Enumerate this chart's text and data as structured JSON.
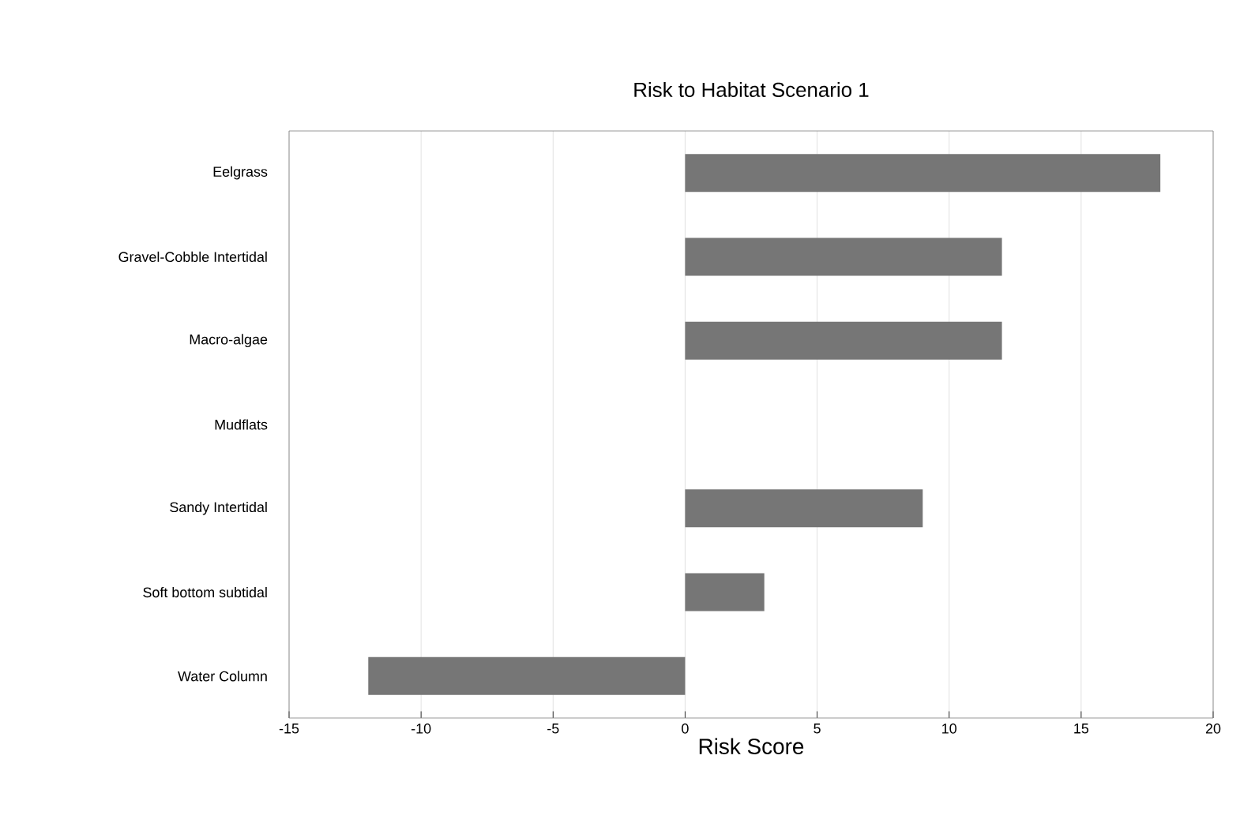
{
  "chart_data": {
    "type": "bar",
    "orientation": "horizontal",
    "title": "Risk to Habitat Scenario 1",
    "xlabel": "Risk Score",
    "categories": [
      "Eelgrass",
      "Gravel-Cobble Intertidal",
      "Macro-algae",
      "Mudflats",
      "Sandy Intertidal",
      "Soft bottom subtidal",
      "Water Column"
    ],
    "values": [
      18,
      12,
      12,
      0,
      9,
      3,
      -12
    ],
    "color": "#767676",
    "xlim": [
      -15,
      20
    ],
    "xticks": [
      -15,
      -10,
      -5,
      0,
      5,
      10,
      15,
      20
    ],
    "grid": "x"
  }
}
